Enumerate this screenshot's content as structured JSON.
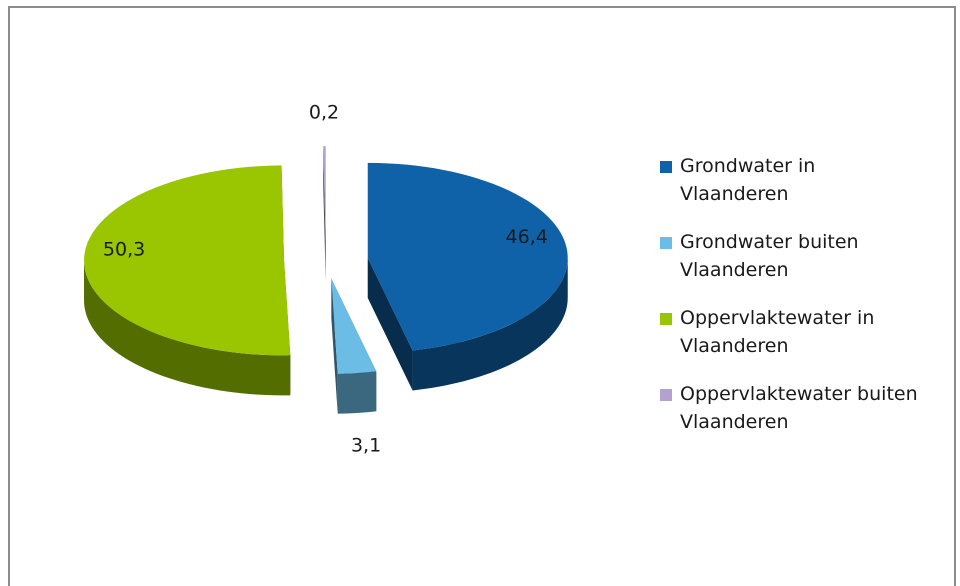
{
  "chart_data": {
    "type": "pie",
    "categories": [
      "Grondwater in Vlaanderen",
      "Grondwater buiten Vlaanderen",
      "Oppervlaktewater in Vlaanderen",
      "Oppervlaktewater buiten Vlaanderen"
    ],
    "values": [
      46.4,
      3.1,
      50.3,
      0.2
    ],
    "value_labels": [
      "46,4",
      "3,1",
      "50,3",
      "0,2"
    ],
    "colors": [
      "#0f61a8",
      "#6cbde6",
      "#99c600",
      "#b3a2d0"
    ],
    "legend": "right"
  }
}
